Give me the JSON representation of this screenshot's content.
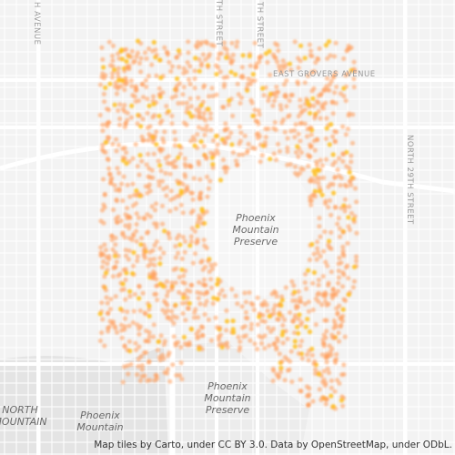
{
  "map": {
    "labels": [
      {
        "lines": [
          "Phoenix",
          "Mountain",
          "Preserve"
        ]
      },
      {
        "lines": [
          "Phoenix",
          "Mountain",
          "Preserve"
        ]
      },
      {
        "lines": [
          "Phoenix",
          "Mountain"
        ]
      },
      {
        "lines": [
          "NORTH",
          "MOUNTAIN"
        ]
      }
    ],
    "streets": [
      "EAST GROVERS AVENUE",
      "NORTH 29TH STREET",
      "H AVENUE",
      "TH STREET",
      "TH STREET"
    ],
    "attribution": "Map tiles by Carto, under CC BY 3.0. Data by OpenStreetMap, under ODbL."
  }
}
